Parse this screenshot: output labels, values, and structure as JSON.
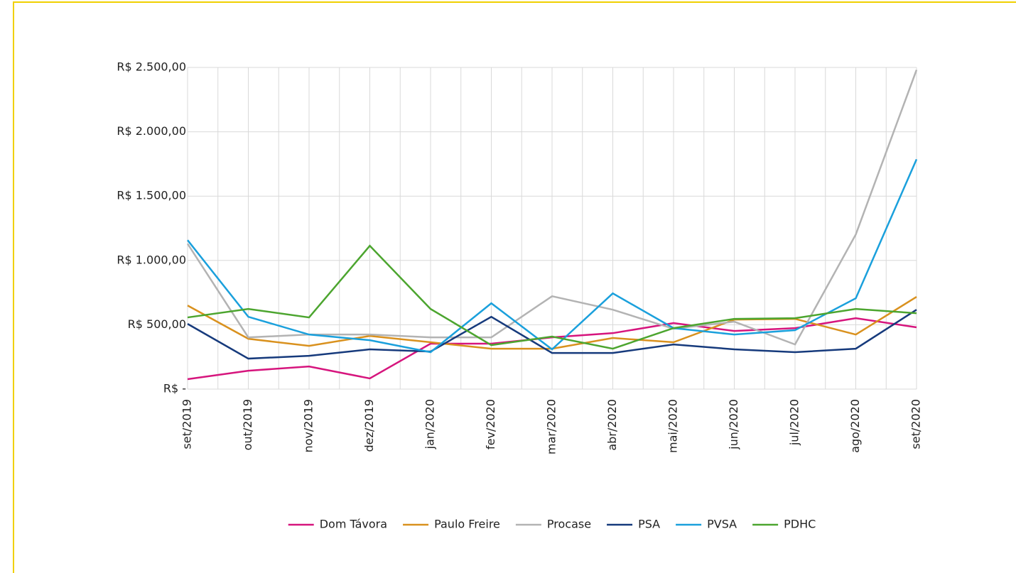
{
  "chart_data": {
    "type": "line",
    "categories": [
      "set/2019",
      "out/2019",
      "nov/2019",
      "dez/2019",
      "jan/2020",
      "fev/2020",
      "mar/2020",
      "abr/2020",
      "mai/2020",
      "jun/2020",
      "jul/2020",
      "ago/2020",
      "set/2020"
    ],
    "series": [
      {
        "name": "Dom Távora",
        "color": "#d6157d",
        "values": [
          77,
          143,
          176,
          83,
          353,
          353,
          402,
          435,
          513,
          452,
          474,
          551,
          480
        ]
      },
      {
        "name": "Paulo Freire",
        "color": "#d9911e",
        "values": [
          650,
          391,
          336,
          413,
          364,
          314,
          314,
          397,
          364,
          540,
          546,
          424,
          717
        ]
      },
      {
        "name": "Procase",
        "color": "#b3b3b3",
        "values": [
          1130,
          402,
          424,
          424,
          402,
          402,
          722,
          617,
          469,
          524,
          347,
          1202,
          2481
        ]
      },
      {
        "name": "PSA",
        "color": "#163a7c",
        "values": [
          507,
          237,
          259,
          309,
          292,
          562,
          281,
          281,
          347,
          309,
          287,
          314,
          617
        ]
      },
      {
        "name": "PVSA",
        "color": "#1aa0dc",
        "values": [
          1158,
          562,
          424,
          380,
          287,
          667,
          309,
          744,
          474,
          424,
          458,
          706,
          1786
        ]
      },
      {
        "name": "PDHC",
        "color": "#4ca52f",
        "values": [
          557,
          623,
          557,
          1114,
          623,
          342,
          408,
          314,
          474,
          546,
          551,
          623,
          590
        ]
      }
    ],
    "ylim": [
      0,
      2500
    ],
    "yticks": [
      {
        "value": 0,
        "label": "R$ -"
      },
      {
        "value": 500,
        "label": "R$ 500,00"
      },
      {
        "value": 1000,
        "label": "R$ 1.000,00"
      },
      {
        "value": 1500,
        "label": "R$ 1.500,00"
      },
      {
        "value": 2000,
        "label": "R$ 2.000,00"
      },
      {
        "value": 2500,
        "label": "R$ 2.500,00"
      }
    ],
    "grid": true,
    "legend": "bottom"
  }
}
